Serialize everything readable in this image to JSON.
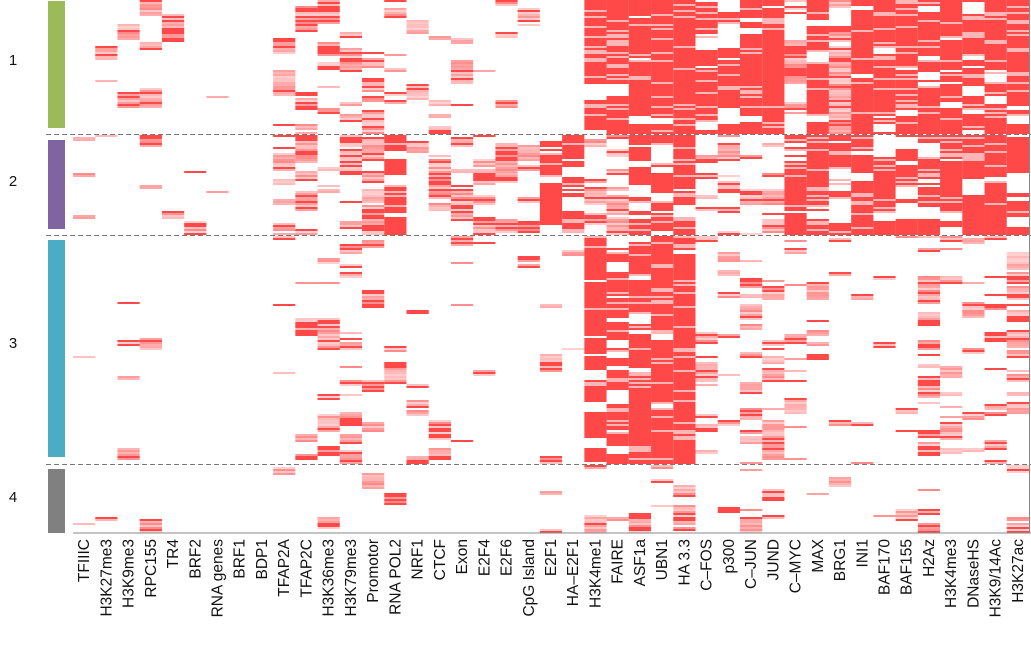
{
  "chart_data": {
    "type": "heatmap",
    "title": "",
    "xlabel": "",
    "ylabel": "",
    "grid": false,
    "legend": "none",
    "cell_color": "#ff4848",
    "background_color": "#ffffff",
    "columns": [
      "TFIIIC",
      "H3K27me3",
      "H3K9me3",
      "RPC155",
      "TR4",
      "BRF2",
      "RNA genes",
      "BRF1",
      "BDP1",
      "TFAP2A",
      "TFAP2C",
      "H3K36me3",
      "H3K79me3",
      "Promotor",
      "RNA POL2",
      "NRF1",
      "CTCF",
      "Exon",
      "E2F4",
      "E2F6",
      "CpG Island",
      "E2F1",
      "HA–E2F1",
      "H3K4me1",
      "FAIRE",
      "ASF1a",
      "UBN1",
      "HA 3.3",
      "C–FOS",
      "p300",
      "C–JUN",
      "JUND",
      "C–MYC",
      "MAX",
      "BRG1",
      "INI1",
      "BAF170",
      "BAF155",
      "H2Az",
      "H3K4me3",
      "DNaseHS",
      "H3K9/14Ac",
      "H3K27ac"
    ],
    "clusters": [
      {
        "label": "1",
        "color": "#9bbb59"
      },
      {
        "label": "2",
        "color": "#8064a2"
      },
      {
        "label": "3",
        "color": "#4bacc6"
      },
      {
        "label": "4",
        "color": "#808080"
      }
    ],
    "signal_fraction_by_cluster": [
      [
        0.15,
        0.05,
        0.05,
        0.12,
        0.02,
        0.01,
        0.01,
        0.01,
        0.01,
        0.35,
        0.35,
        0.2,
        0.3,
        0.25,
        0.25,
        0.25,
        0.2,
        0.15,
        0.05,
        0.05,
        0.05,
        0.05,
        0.05,
        0.95,
        0.95,
        0.95,
        0.95,
        0.97,
        0.8,
        0.8,
        0.9,
        0.95,
        0.6,
        0.7,
        0.6,
        0.9,
        0.8,
        0.9,
        0.85,
        0.8,
        0.75,
        0.85,
        0.9
      ],
      [
        0.15,
        0.03,
        0.03,
        0.08,
        0.02,
        0.02,
        0.03,
        0.03,
        0.03,
        0.55,
        0.55,
        0.2,
        0.4,
        0.6,
        0.75,
        0.35,
        0.3,
        0.3,
        0.5,
        0.45,
        0.6,
        0.7,
        0.65,
        0.4,
        0.55,
        0.7,
        0.7,
        0.8,
        0.3,
        0.25,
        0.25,
        0.4,
        0.8,
        0.8,
        0.7,
        0.85,
        0.7,
        0.85,
        0.8,
        0.9,
        0.85,
        0.9,
        0.9
      ],
      [
        0.05,
        0.03,
        0.03,
        0.02,
        0.01,
        0,
        0,
        0,
        0,
        0.1,
        0.1,
        0.3,
        0.3,
        0.1,
        0.1,
        0.1,
        0.1,
        0.05,
        0.02,
        0.02,
        0.02,
        0.02,
        0.02,
        0.85,
        0.75,
        0.9,
        0.95,
        0.98,
        0.25,
        0.25,
        0.25,
        0.3,
        0.15,
        0.15,
        0.1,
        0.1,
        0.1,
        0.1,
        0.4,
        0.25,
        0.3,
        0.35,
        0.4
      ],
      [
        0.03,
        0.05,
        0.05,
        0.02,
        0.02,
        0,
        0,
        0,
        0,
        0.03,
        0.03,
        0.1,
        0.08,
        0.05,
        0.05,
        0.03,
        0.03,
        0.03,
        0.02,
        0.02,
        0.02,
        0.02,
        0.02,
        0.4,
        0.3,
        0.3,
        0.35,
        0.3,
        0.05,
        0.05,
        0.05,
        0.05,
        0.05,
        0.05,
        0.05,
        0.05,
        0.05,
        0.05,
        0.35,
        0.05,
        0.1,
        0.1,
        0.1
      ]
    ]
  }
}
